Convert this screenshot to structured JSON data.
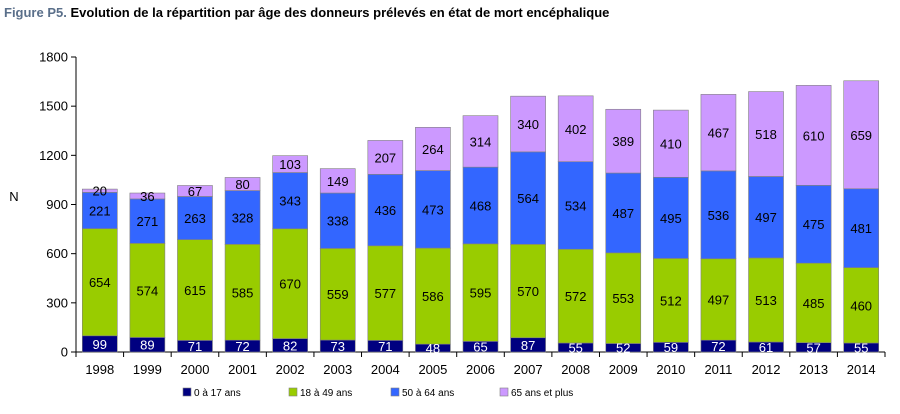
{
  "title_prefix": "Figure P5.",
  "title_text": "Evolution de la répartition par âge des donneurs prélevés en état de mort encéphalique",
  "chart_data": {
    "type": "bar",
    "stacked": true,
    "title": "Figure P5. Evolution de la répartition par âge des donneurs prélevés en état de mort encéphalique",
    "ylabel": "N",
    "xlabel": "",
    "ylim": [
      0,
      1800
    ],
    "yticks": [
      0,
      300,
      600,
      900,
      1200,
      1500,
      1800
    ],
    "ytick_labels": [
      "0",
      "300",
      "600",
      "900",
      "1200",
      "1500",
      "1800"
    ],
    "grid": false,
    "legend_position": "bottom",
    "categories": [
      "1998",
      "1999",
      "2000",
      "2001",
      "2002",
      "2003",
      "2004",
      "2005",
      "2006",
      "2007",
      "2008",
      "2009",
      "2010",
      "2011",
      "2012",
      "2013",
      "2014"
    ],
    "series": [
      {
        "name": "0 à 17 ans",
        "color": "#000080",
        "label_color": "#ffffff",
        "values": [
          99,
          89,
          71,
          72,
          82,
          73,
          71,
          48,
          65,
          87,
          55,
          52,
          59,
          72,
          61,
          57,
          55
        ]
      },
      {
        "name": "18 à 49 ans",
        "color": "#99cc00",
        "label_color": "#000000",
        "values": [
          654,
          574,
          615,
          585,
          670,
          559,
          577,
          586,
          595,
          570,
          572,
          553,
          512,
          497,
          513,
          485,
          460
        ]
      },
      {
        "name": "50 à 64 ans",
        "color": "#3366ff",
        "label_color": "#000000",
        "values": [
          221,
          271,
          263,
          328,
          343,
          338,
          436,
          473,
          468,
          564,
          534,
          487,
          495,
          536,
          497,
          475,
          481
        ]
      },
      {
        "name": "65 ans et plus",
        "color": "#cc99ff",
        "label_color": "#000000",
        "values": [
          20,
          36,
          67,
          80,
          103,
          149,
          207,
          264,
          314,
          340,
          402,
          389,
          410,
          467,
          518,
          610,
          659
        ]
      }
    ]
  }
}
